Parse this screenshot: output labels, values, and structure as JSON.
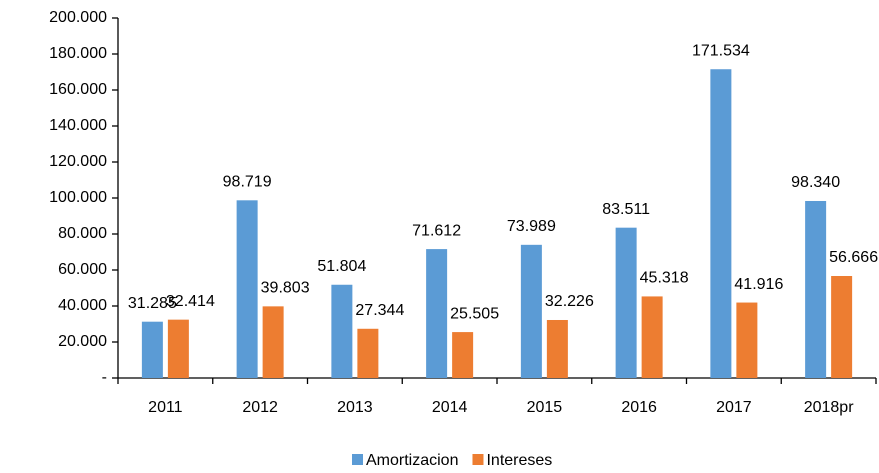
{
  "chart_data": {
    "type": "bar",
    "categories": [
      "2011",
      "2012",
      "2013",
      "2014",
      "2015",
      "2016",
      "2017",
      "2018pr"
    ],
    "series": [
      {
        "name": "Amortizacion",
        "color": "#5b9bd5",
        "values": [
          31285,
          98719,
          51804,
          71612,
          73989,
          83511,
          171534,
          98340
        ],
        "value_labels": [
          "31.285",
          "98.719",
          "51.804",
          "71.612",
          "73.989",
          "83.511",
          "171.534",
          "98.340"
        ]
      },
      {
        "name": "Intereses",
        "color": "#ed7d31",
        "values": [
          32414,
          39803,
          27344,
          25505,
          32226,
          45318,
          41916,
          56666
        ],
        "value_labels": [
          "32.414",
          "39.803",
          "27.344",
          "25.505",
          "32.226",
          "45.318",
          "41.916",
          "56.666"
        ]
      }
    ],
    "ylim": [
      0,
      200000
    ],
    "yticks": [
      {
        "value": 0,
        "label": "-"
      },
      {
        "value": 20000,
        "label": "20.000"
      },
      {
        "value": 40000,
        "label": "40.000"
      },
      {
        "value": 60000,
        "label": "60.000"
      },
      {
        "value": 80000,
        "label": "80.000"
      },
      {
        "value": 100000,
        "label": "100.000"
      },
      {
        "value": 120000,
        "label": "120.000"
      },
      {
        "value": 140000,
        "label": "140.000"
      },
      {
        "value": 160000,
        "label": "160.000"
      },
      {
        "value": 180000,
        "label": "180.000"
      },
      {
        "value": 200000,
        "label": "200.000"
      }
    ],
    "legend": "bottom"
  }
}
